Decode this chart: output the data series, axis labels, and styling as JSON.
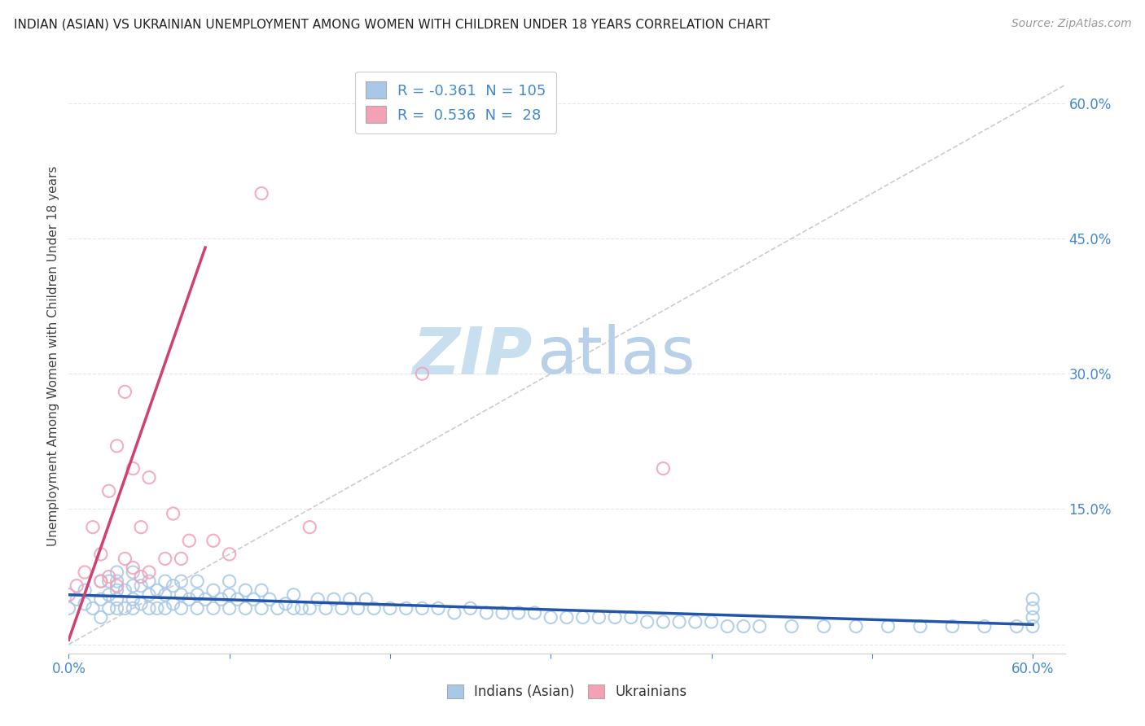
{
  "title": "INDIAN (ASIAN) VS UKRAINIAN UNEMPLOYMENT AMONG WOMEN WITH CHILDREN UNDER 18 YEARS CORRELATION CHART",
  "source": "Source: ZipAtlas.com",
  "ylabel": "Unemployment Among Women with Children Under 18 years",
  "xlim": [
    0.0,
    0.62
  ],
  "ylim": [
    -0.01,
    0.65
  ],
  "xtick_vals": [
    0.0,
    0.1,
    0.2,
    0.3,
    0.4,
    0.5,
    0.6
  ],
  "ytick_right_vals": [
    0.0,
    0.15,
    0.3,
    0.45,
    0.6
  ],
  "blue_R": -0.361,
  "blue_N": 105,
  "pink_R": 0.536,
  "pink_N": 28,
  "blue_scatter_color": "#a8c8e8",
  "pink_scatter_color": "#f4a0b5",
  "blue_line_color": "#2255aa",
  "pink_line_color": "#d04070",
  "ref_line_color": "#cccccc",
  "watermark_zip_color": "#c8dff0",
  "watermark_atlas_color": "#b8d0e8",
  "legend_label_blue": "Indians (Asian)",
  "legend_label_pink": "Ukrainians",
  "grid_color": "#e0e8f0",
  "background_color": "#ffffff",
  "blue_scatter_x": [
    0.0,
    0.005,
    0.01,
    0.01,
    0.015,
    0.02,
    0.02,
    0.02,
    0.025,
    0.025,
    0.025,
    0.03,
    0.03,
    0.03,
    0.03,
    0.03,
    0.035,
    0.035,
    0.04,
    0.04,
    0.04,
    0.04,
    0.045,
    0.045,
    0.05,
    0.05,
    0.05,
    0.055,
    0.055,
    0.06,
    0.06,
    0.06,
    0.065,
    0.065,
    0.07,
    0.07,
    0.07,
    0.075,
    0.08,
    0.08,
    0.08,
    0.085,
    0.09,
    0.09,
    0.095,
    0.1,
    0.1,
    0.1,
    0.105,
    0.11,
    0.11,
    0.115,
    0.12,
    0.12,
    0.125,
    0.13,
    0.135,
    0.14,
    0.14,
    0.145,
    0.15,
    0.155,
    0.16,
    0.165,
    0.17,
    0.175,
    0.18,
    0.185,
    0.19,
    0.2,
    0.21,
    0.22,
    0.23,
    0.24,
    0.25,
    0.26,
    0.27,
    0.28,
    0.29,
    0.3,
    0.31,
    0.32,
    0.33,
    0.34,
    0.35,
    0.36,
    0.37,
    0.38,
    0.39,
    0.4,
    0.41,
    0.42,
    0.43,
    0.45,
    0.47,
    0.49,
    0.51,
    0.53,
    0.55,
    0.57,
    0.59,
    0.6,
    0.6,
    0.6,
    0.6
  ],
  "blue_scatter_y": [
    0.04,
    0.05,
    0.045,
    0.06,
    0.04,
    0.03,
    0.05,
    0.07,
    0.04,
    0.055,
    0.07,
    0.04,
    0.05,
    0.06,
    0.07,
    0.08,
    0.04,
    0.06,
    0.04,
    0.05,
    0.065,
    0.08,
    0.045,
    0.065,
    0.04,
    0.055,
    0.07,
    0.04,
    0.06,
    0.04,
    0.055,
    0.07,
    0.045,
    0.065,
    0.04,
    0.055,
    0.07,
    0.05,
    0.04,
    0.055,
    0.07,
    0.05,
    0.04,
    0.06,
    0.05,
    0.04,
    0.055,
    0.07,
    0.05,
    0.04,
    0.06,
    0.05,
    0.04,
    0.06,
    0.05,
    0.04,
    0.045,
    0.04,
    0.055,
    0.04,
    0.04,
    0.05,
    0.04,
    0.05,
    0.04,
    0.05,
    0.04,
    0.05,
    0.04,
    0.04,
    0.04,
    0.04,
    0.04,
    0.035,
    0.04,
    0.035,
    0.035,
    0.035,
    0.035,
    0.03,
    0.03,
    0.03,
    0.03,
    0.03,
    0.03,
    0.025,
    0.025,
    0.025,
    0.025,
    0.025,
    0.02,
    0.02,
    0.02,
    0.02,
    0.02,
    0.02,
    0.02,
    0.02,
    0.02,
    0.02,
    0.02,
    0.05,
    0.04,
    0.03,
    0.02
  ],
  "pink_scatter_x": [
    0.0,
    0.005,
    0.01,
    0.015,
    0.02,
    0.02,
    0.025,
    0.025,
    0.03,
    0.03,
    0.035,
    0.035,
    0.04,
    0.04,
    0.045,
    0.045,
    0.05,
    0.05,
    0.06,
    0.065,
    0.07,
    0.075,
    0.09,
    0.1,
    0.12,
    0.15,
    0.22,
    0.37
  ],
  "pink_scatter_y": [
    0.055,
    0.065,
    0.08,
    0.13,
    0.07,
    0.1,
    0.075,
    0.17,
    0.065,
    0.22,
    0.095,
    0.28,
    0.085,
    0.195,
    0.075,
    0.13,
    0.08,
    0.185,
    0.095,
    0.145,
    0.095,
    0.115,
    0.115,
    0.1,
    0.5,
    0.13,
    0.3,
    0.195
  ],
  "blue_line_x": [
    0.0,
    0.6
  ],
  "blue_line_y_start": 0.055,
  "blue_line_y_end": 0.022,
  "pink_line_x": [
    0.0,
    0.085
  ],
  "pink_line_y_start": 0.005,
  "pink_line_y_end": 0.44,
  "ref_line_x": [
    0.0,
    0.62
  ],
  "ref_line_y": [
    0.0,
    0.62
  ]
}
